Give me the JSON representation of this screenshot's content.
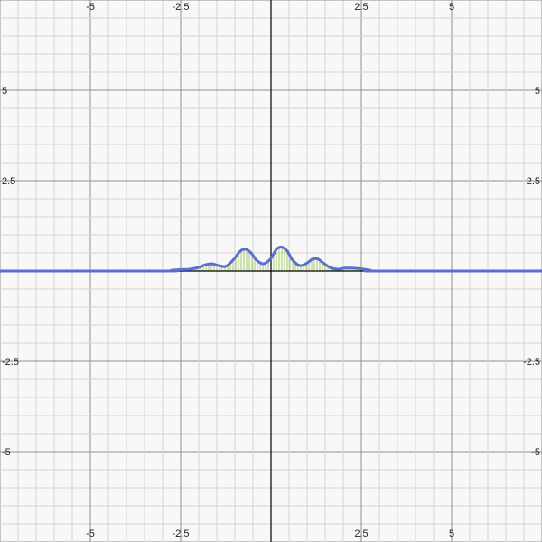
{
  "chart_data": {
    "type": "line",
    "title": "",
    "xlabel": "",
    "ylabel": "",
    "xlim": [
      -7.5,
      7.5
    ],
    "ylim": [
      -7.5,
      7.5
    ],
    "grid": true,
    "minor_grid_step": 0.5,
    "major_grid_step": 2.5,
    "x_tick_labels": [
      "-5",
      "-2.5",
      "2.5",
      "5"
    ],
    "y_tick_labels": [
      "5",
      "2.5",
      "-2.5",
      "-5"
    ],
    "series": [
      {
        "color": "#5a6fcf",
        "fill_color": "#8fbf3f",
        "x": [
          -7.5,
          -3.0,
          -2.75,
          -2.5,
          -2.25,
          -2.0,
          -1.85,
          -1.65,
          -1.45,
          -1.25,
          -1.05,
          -0.85,
          -0.7,
          -0.55,
          -0.4,
          -0.2,
          0.0,
          0.15,
          0.3,
          0.45,
          0.6,
          0.8,
          1.0,
          1.15,
          1.3,
          1.45,
          1.65,
          1.85,
          2.05,
          2.25,
          2.5,
          2.75,
          3.0,
          7.5
        ],
        "y": [
          0.0,
          0.0,
          0.02,
          0.04,
          0.05,
          0.1,
          0.16,
          0.2,
          0.15,
          0.13,
          0.3,
          0.55,
          0.6,
          0.5,
          0.3,
          0.2,
          0.35,
          0.6,
          0.66,
          0.55,
          0.3,
          0.15,
          0.22,
          0.33,
          0.33,
          0.22,
          0.09,
          0.05,
          0.08,
          0.08,
          0.06,
          0.02,
          0.0,
          0.0
        ]
      }
    ]
  }
}
